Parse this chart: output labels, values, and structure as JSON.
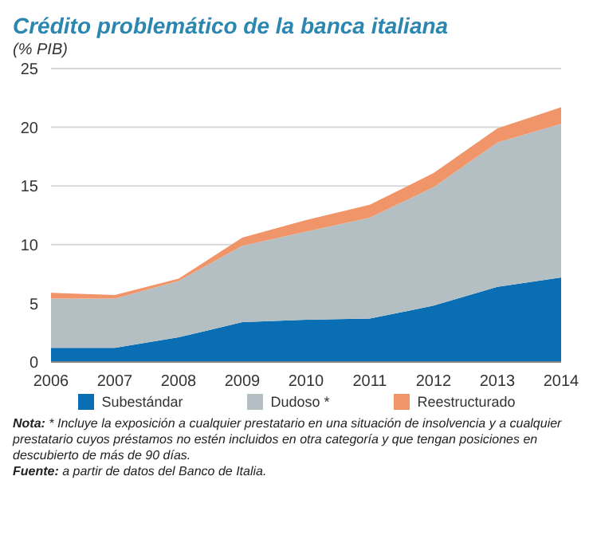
{
  "chart_data": {
    "type": "area",
    "title": "Crédito problemático de la banca italiana",
    "subtitle": "(% PIB)",
    "categories": [
      "2006",
      "2007",
      "2008",
      "2009",
      "2010",
      "2011",
      "2012",
      "2013",
      "2014"
    ],
    "stacked": true,
    "series": [
      {
        "name": "Subestándar",
        "color": "#0a6eb4",
        "values": [
          1.2,
          1.2,
          2.1,
          3.4,
          3.6,
          3.7,
          4.8,
          6.4,
          7.2
        ]
      },
      {
        "name": "Dudoso *",
        "color": "#b4bfc4",
        "values": [
          4.2,
          4.2,
          4.8,
          6.5,
          7.5,
          8.6,
          10.1,
          12.3,
          13.1
        ]
      },
      {
        "name": "Reestructurado",
        "color": "#f0956a",
        "values": [
          0.5,
          0.3,
          0.2,
          0.7,
          1.0,
          1.1,
          1.2,
          1.2,
          1.4
        ]
      }
    ],
    "ylim": [
      0,
      25
    ],
    "yticks": [
      0,
      5,
      10,
      15,
      20,
      25
    ],
    "grid": "y",
    "legend": "bottom",
    "annotations": [
      "Nota: * Incluye la exposición a cualquier prestatario en una situación de insolvencia y a cualquier prestatario cuyos préstamos no estén incluidos en otra categoría y que tengan posiciones en descubierto de más de 90 días.",
      "Fuente: a partir de datos del Banco de Italia."
    ]
  }
}
